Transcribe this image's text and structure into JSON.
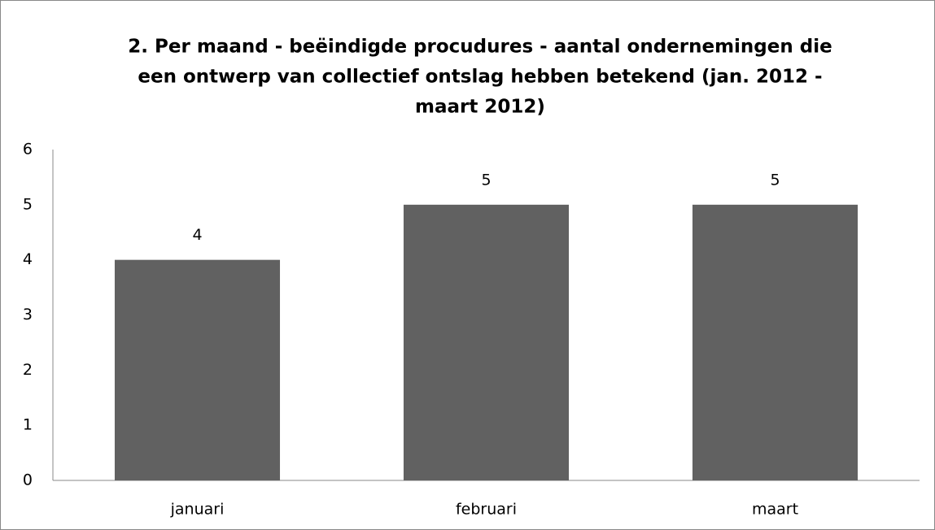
{
  "chart_data": {
    "type": "bar",
    "title": [
      "2. Per maand - beëindigde procudures - aantal ondernemingen die",
      "een ontwerp van collectief ontslag hebben betekend (jan. 2012 -",
      "maart 2012)"
    ],
    "categories": [
      "januari",
      "februari",
      "maart"
    ],
    "values": [
      4,
      5,
      5
    ],
    "color": "#616161",
    "ylim": [
      0,
      6
    ],
    "yticks": [
      0,
      1,
      2,
      3,
      4,
      5,
      6
    ],
    "grid": false
  }
}
